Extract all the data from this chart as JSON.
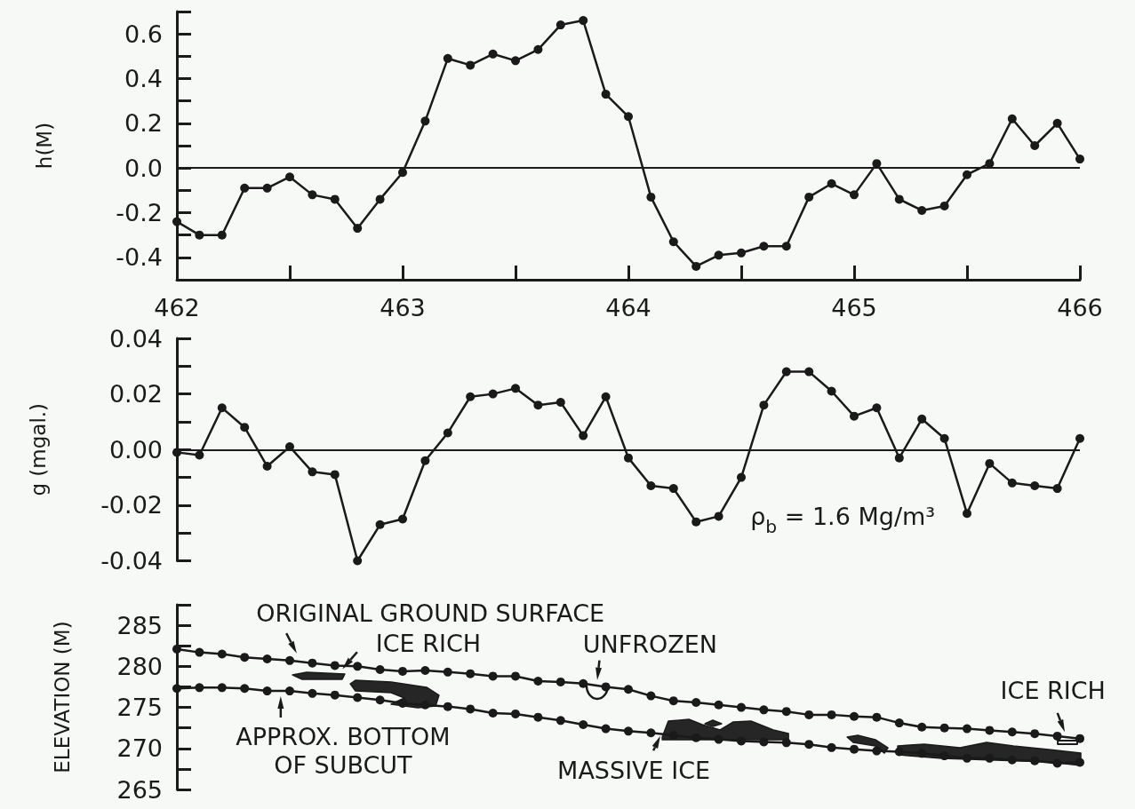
{
  "chart_data": [
    {
      "type": "line",
      "ylabel": "h(M)",
      "x": [
        462.0,
        462.1,
        462.2,
        462.3,
        462.4,
        462.5,
        462.6,
        462.7,
        462.8,
        462.9,
        463.0,
        463.1,
        463.2,
        463.3,
        463.4,
        463.5,
        463.6,
        463.7,
        463.8,
        463.9,
        464.0,
        464.1,
        464.2,
        464.3,
        464.4,
        464.5,
        464.6,
        464.7,
        464.8,
        464.9,
        465.0,
        465.1,
        465.2,
        465.3,
        465.4,
        465.5,
        465.6,
        465.7,
        465.8,
        465.9,
        466.0
      ],
      "series": [
        {
          "color": "#1a1a1a",
          "values": [
            -0.24,
            -0.3,
            -0.3,
            -0.09,
            -0.09,
            -0.04,
            -0.12,
            -0.14,
            -0.27,
            -0.14,
            -0.02,
            0.21,
            0.49,
            0.46,
            0.51,
            0.48,
            0.53,
            0.64,
            0.66,
            0.33,
            0.23,
            -0.13,
            -0.33,
            -0.44,
            -0.39,
            -0.38,
            -0.35,
            -0.35,
            -0.13,
            -0.07,
            -0.12,
            0.02,
            -0.14,
            -0.19,
            -0.17,
            -0.03,
            0.02,
            0.22,
            0.1,
            0.2,
            0.04
          ]
        }
      ],
      "xlim": [
        462,
        466
      ],
      "xticks": [
        462,
        {
          "value": 462.5,
          "label": null
        },
        463,
        {
          "value": 463.5,
          "label": null
        },
        464,
        {
          "value": 464.5,
          "label": null
        },
        465,
        {
          "value": 465.5,
          "label": null
        },
        466
      ],
      "ylim": [
        -0.5,
        0.7
      ],
      "yticks": [
        -0.4,
        {
          "value": -0.3,
          "label": null
        },
        -0.2,
        {
          "value": -0.1,
          "label": null
        },
        {
          "value": 0,
          "label": "0.0"
        },
        {
          "value": 0.1,
          "label": null
        },
        0.2,
        {
          "value": 0.3,
          "label": null
        },
        0.4,
        {
          "value": 0.5,
          "label": null
        },
        0.6,
        {
          "value": 0.7,
          "label": null
        }
      ],
      "ref_lines": [
        {
          "axis": "y",
          "value": 0
        }
      ],
      "marker": "circle",
      "line_style": "solid"
    },
    {
      "type": "line",
      "ylabel": "g (mgal.)",
      "x": [
        462.0,
        462.1,
        462.2,
        462.3,
        462.4,
        462.5,
        462.6,
        462.7,
        462.8,
        462.9,
        463.0,
        463.1,
        463.2,
        463.3,
        463.4,
        463.5,
        463.6,
        463.7,
        463.8,
        463.9,
        464.0,
        464.1,
        464.2,
        464.3,
        464.4,
        464.5,
        464.6,
        464.7,
        464.8,
        464.9,
        465.0,
        465.1,
        465.2,
        465.3,
        465.4,
        465.5,
        465.6,
        465.7,
        465.8,
        465.9,
        466.0
      ],
      "series": [
        {
          "color": "#1a1a1a",
          "values": [
            -0.001,
            -0.002,
            0.015,
            0.008,
            -0.006,
            0.001,
            -0.008,
            -0.009,
            -0.04,
            -0.027,
            -0.025,
            -0.004,
            0.006,
            0.019,
            0.02,
            0.022,
            0.016,
            0.017,
            0.005,
            0.019,
            -0.003,
            -0.013,
            -0.014,
            -0.026,
            -0.024,
            -0.01,
            0.016,
            0.028,
            0.028,
            0.021,
            0.012,
            0.015,
            -0.003,
            0.011,
            0.004,
            -0.023,
            -0.005,
            -0.012,
            -0.013,
            -0.014,
            0.004
          ]
        }
      ],
      "xlim": [
        462,
        466
      ],
      "ylim": [
        -0.04,
        0.04
      ],
      "yticks": [
        -0.04,
        {
          "value": -0.03,
          "label": null
        },
        -0.02,
        {
          "value": -0.01,
          "label": null
        },
        {
          "value": 0,
          "label": "0.00"
        },
        {
          "value": 0.01,
          "label": null
        },
        0.02,
        {
          "value": 0.03,
          "label": null
        },
        0.04
      ],
      "ref_lines": [
        {
          "axis": "y",
          "value": 0
        }
      ],
      "annotations": [
        "ρ$_{b}$ = 1.6 Mg/m³"
      ],
      "tick_labels": "y",
      "marker": "circle",
      "line_style": "solid"
    },
    {
      "type": "line",
      "ylabel": "ELEVATION (M)",
      "x": [
        462.0,
        462.1,
        462.2,
        462.3,
        462.4,
        462.5,
        462.6,
        462.7,
        462.8,
        462.9,
        463.0,
        463.1,
        463.2,
        463.3,
        463.4,
        463.5,
        463.6,
        463.7,
        463.8,
        463.9,
        464.0,
        464.1,
        464.2,
        464.3,
        464.4,
        464.5,
        464.6,
        464.7,
        464.8,
        464.9,
        465.0,
        465.1,
        465.2,
        465.3,
        465.4,
        465.5,
        465.6,
        465.7,
        465.8,
        465.9,
        466.0
      ],
      "series": [
        {
          "color": "#1a1a1a",
          "values": [
            282.1,
            281.7,
            281.5,
            281.1,
            280.9,
            280.7,
            280.4,
            280.1,
            280.0,
            279.6,
            279.4,
            279.5,
            279.3,
            279.1,
            278.8,
            278.8,
            278.2,
            278.1,
            277.9,
            277.5,
            277.2,
            276.4,
            275.8,
            275.6,
            275.3,
            275.0,
            274.7,
            274.5,
            274.1,
            274.1,
            273.9,
            273.8,
            273.1,
            272.6,
            272.5,
            272.4,
            272.2,
            272.0,
            271.8,
            271.5,
            271.2
          ]
        },
        {
          "color": "#1a1a1a",
          "values": [
            277.3,
            277.4,
            277.4,
            277.3,
            277.0,
            277.0,
            276.7,
            276.5,
            276.2,
            275.9,
            275.5,
            275.3,
            275.1,
            274.8,
            274.3,
            274.2,
            273.8,
            273.4,
            272.9,
            272.4,
            272.1,
            271.9,
            271.6,
            271.3,
            271.1,
            270.9,
            270.8,
            270.7,
            270.5,
            270.1,
            269.9,
            269.7,
            269.6,
            269.4,
            269.1,
            268.8,
            268.8,
            268.6,
            268.5,
            268.2,
            268.3
          ]
        }
      ],
      "xlim": [
        462,
        466
      ],
      "ylim": [
        265,
        287.5
      ],
      "yticks": [
        265,
        {
          "value": 267.5,
          "label": null
        },
        270,
        {
          "value": 272.5,
          "label": null
        },
        275,
        {
          "value": 277.5,
          "label": null
        },
        280,
        {
          "value": 282.5,
          "label": null
        },
        285,
        {
          "value": 287.5,
          "label": null
        }
      ],
      "annotations": [
        {
          "text": "ORIGINAL GROUND SURFACE",
          "x": 462.54,
          "y": 281.1
        },
        "ICE RICH",
        {
          "text": "UNFROZEN",
          "x": 463.86,
          "y": 277.8
        },
        {
          "text": "APPROX. BOTTOM OF SUBCUT",
          "x": 462.46,
          "y": 276.9
        },
        {
          "text": "MASSIVE ICE",
          "x": 464.15,
          "y": 272.0
        },
        "ICE RICH"
      ],
      "tick_labels": "y",
      "marker": "circle",
      "line_style": "solid"
    }
  ]
}
